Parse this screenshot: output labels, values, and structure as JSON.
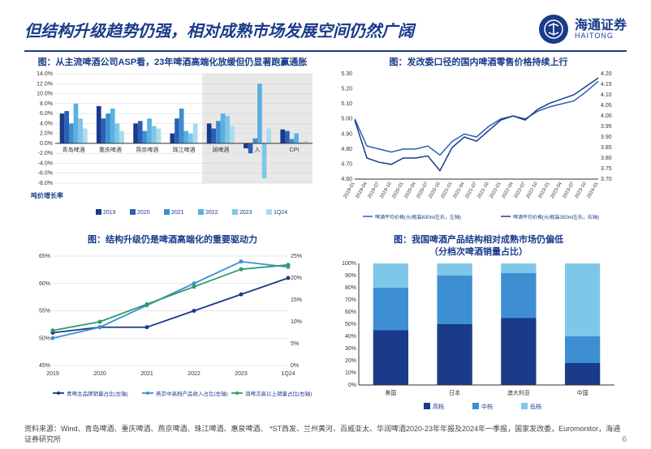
{
  "header": {
    "title": "但结构升级趋势仍强，相对成熟市场发展空间仍然广阔",
    "logo_cn": "海通证券",
    "logo_en": "HAITONG"
  },
  "chart1": {
    "title": "图：从主流啤酒公司ASP看，23年啤酒高端化放缓但仍显著跑赢通胀",
    "type": "bar",
    "ylabel": "吨价增长率",
    "categories": [
      "青岛啤酒",
      "重庆啤酒",
      "燕京啤酒",
      "珠江啤酒",
      "润啤酒",
      "入",
      "CPI"
    ],
    "series": [
      {
        "name": "2019",
        "color": "#1a3a8a",
        "values": [
          6,
          7.5,
          4,
          2,
          4,
          -1,
          2.8
        ]
      },
      {
        "name": "2020",
        "color": "#2b5fb8",
        "values": [
          6.5,
          5,
          4.5,
          5,
          3,
          -2,
          2.5
        ]
      },
      {
        "name": "2021",
        "color": "#3d8fd1",
        "values": [
          4,
          6,
          2.5,
          7,
          4.5,
          1,
          0.9
        ]
      },
      {
        "name": "2022",
        "color": "#5ab0e0",
        "values": [
          8,
          7,
          5,
          2.5,
          6,
          12,
          2
        ]
      },
      {
        "name": "2023",
        "color": "#7fc7e8",
        "values": [
          5,
          4,
          3.5,
          2,
          5.5,
          -7,
          0.2
        ]
      },
      {
        "name": "1Q24",
        "color": "#a8dcef",
        "values": [
          3,
          2.5,
          3,
          4,
          3.5,
          3,
          0.5
        ]
      }
    ],
    "ylim": [
      -8,
      14
    ],
    "ytick_step": 2,
    "background": "#ffffff",
    "grid_color": "#d0d0d0",
    "highlight_start": 4
  },
  "chart2": {
    "title": "图：发改委口径的国内啤酒零售价格持续上行",
    "type": "line",
    "x_labels": [
      "2019-01",
      "2019-04",
      "2019-07",
      "2019-10",
      "2020-01",
      "2020-04",
      "2020-07",
      "2020-10",
      "2021-01",
      "2021-04",
      "2021-07",
      "2021-10",
      "2022-01",
      "2022-04",
      "2022-07",
      "2022-10",
      "2023-01",
      "2023-04",
      "2023-07",
      "2023-10",
      "2024-01"
    ],
    "series": [
      {
        "name": "啤酒平均价格(元/瓶装630ml左右，左轴)",
        "color": "#2b5fb8",
        "axis": "left",
        "values": [
          5.0,
          4.82,
          4.8,
          4.78,
          4.8,
          4.8,
          4.82,
          4.76,
          4.85,
          4.9,
          4.88,
          4.95,
          5.0,
          5.02,
          5.0,
          5.05,
          5.08,
          5.1,
          5.12,
          5.18,
          5.25
        ]
      },
      {
        "name": "啤酒平均价格(元/瓶装350ml左右，右轴)",
        "color": "#1a3a8a",
        "axis": "right",
        "values": [
          3.98,
          3.8,
          3.78,
          3.77,
          3.8,
          3.8,
          3.81,
          3.74,
          3.85,
          3.9,
          3.88,
          3.93,
          3.98,
          4.0,
          3.98,
          4.03,
          4.06,
          4.08,
          4.1,
          4.14,
          4.18
        ]
      }
    ],
    "y_left": {
      "lim": [
        4.6,
        5.3
      ],
      "step": 0.1
    },
    "y_right": {
      "lim": [
        3.7,
        4.2
      ],
      "step": 0.05
    },
    "background": "#ffffff",
    "grid_color": "#e0e0e0"
  },
  "chart3": {
    "title": "图：结构升级仍是啤酒高端化的重要驱动力",
    "type": "line",
    "x_labels": [
      "2019",
      "2020",
      "2021",
      "2022",
      "2023",
      "1Q24"
    ],
    "series": [
      {
        "name": "青啤主品牌销量占比(左轴)",
        "color": "#1a3a8a",
        "axis": "left",
        "values": [
          51,
          52,
          52,
          55,
          58,
          61
        ]
      },
      {
        "name": "燕京中高档产品收入占比(左轴)",
        "color": "#3d8fd1",
        "axis": "left",
        "values": [
          50,
          52,
          56,
          60,
          64,
          63
        ]
      },
      {
        "name": "润啤次高以上销量占比(右轴)",
        "color": "#2b9b6b",
        "axis": "right",
        "values": [
          8,
          10,
          14,
          18,
          22,
          23
        ]
      }
    ],
    "y_left": {
      "lim": [
        45,
        65
      ],
      "step": 5
    },
    "y_right": {
      "lim": [
        0,
        25
      ],
      "step": 5
    },
    "background": "#ffffff",
    "grid_color": "#d0d0d0"
  },
  "chart4": {
    "title": "图：我国啤酒产品结构相对成熟市场仍偏低\n（分档次啤酒销量占比）",
    "type": "stacked_bar",
    "categories": [
      "美国",
      "日本",
      "澳大利亚",
      "中国"
    ],
    "segments": [
      {
        "name": "高档",
        "color": "#1a3a8a"
      },
      {
        "name": "中档",
        "color": "#3d8fd1"
      },
      {
        "name": "低档",
        "color": "#7fc7e8"
      }
    ],
    "data": [
      {
        "低档": 20,
        "中档": 35,
        "高档": 45
      },
      {
        "低档": 10,
        "中档": 40,
        "高档": 50
      },
      {
        "低档": 8,
        "中档": 37,
        "高档": 55
      },
      {
        "低档": 60,
        "中档": 22,
        "高档": 18
      }
    ],
    "ylim": [
      0,
      100
    ],
    "ytick_step": 10,
    "background": "#ffffff"
  },
  "footer": {
    "source": "资料来源：Wind、青岛啤酒、重庆啤酒、燕京啤酒、珠江啤酒、惠泉啤酒、",
    "note": "*ST西发、兰州黄河、百威亚太、华润啤酒2020-23年年报及2024年一季报，国家发改委，Euromonitor，海通证券研究所",
    "page": "6"
  }
}
